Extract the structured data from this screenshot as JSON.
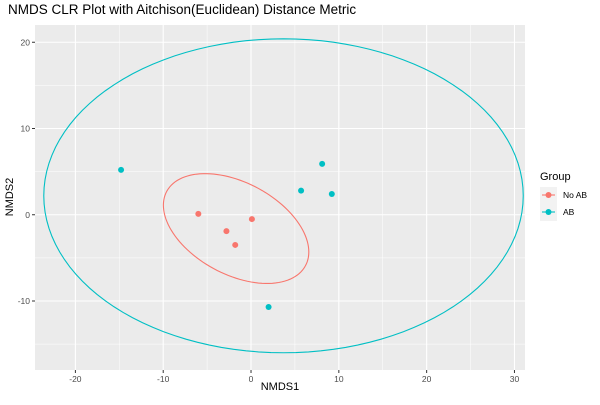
{
  "chart_data": {
    "type": "scatter",
    "title": "NMDS CLR Plot with Aitchison(Euclidean) Distance Metric",
    "xlabel": "NMDS1",
    "ylabel": "NMDS2",
    "xlim": [
      -24.6,
      31.2
    ],
    "ylim": [
      -18.0,
      22.0
    ],
    "x_ticks": [
      -20,
      -10,
      0,
      10,
      20,
      30
    ],
    "y_ticks": [
      -10,
      0,
      10,
      20
    ],
    "x_tick_labels": [
      "-20",
      "-10",
      "0",
      "10",
      "20",
      "30"
    ],
    "y_tick_labels": [
      "-10",
      "0",
      "10",
      "20"
    ],
    "grid": true,
    "legend": {
      "title": "Group",
      "position": "right"
    },
    "series": [
      {
        "name": "No AB",
        "color": "#F8766D",
        "points": [
          {
            "x": -6.0,
            "y": 0.1
          },
          {
            "x": -2.8,
            "y": -1.9
          },
          {
            "x": -1.8,
            "y": -3.5
          },
          {
            "x": 0.1,
            "y": -0.5
          }
        ],
        "ellipse": {
          "center": [
            -1.7,
            -1.6
          ],
          "semi_major": 9.0,
          "semi_minor": 5.3,
          "angle_deg": -29
        }
      },
      {
        "name": "AB",
        "color": "#00BFC4",
        "points": [
          {
            "x": -14.8,
            "y": 5.2
          },
          {
            "x": 5.7,
            "y": 2.8
          },
          {
            "x": 8.1,
            "y": 5.9
          },
          {
            "x": 9.2,
            "y": 2.4
          },
          {
            "x": 2.0,
            "y": -10.7
          }
        ],
        "ellipse": {
          "center": [
            3.7,
            2.2
          ],
          "semi_major": 27.3,
          "semi_minor": 18.2,
          "angle_deg": 0
        }
      }
    ]
  }
}
